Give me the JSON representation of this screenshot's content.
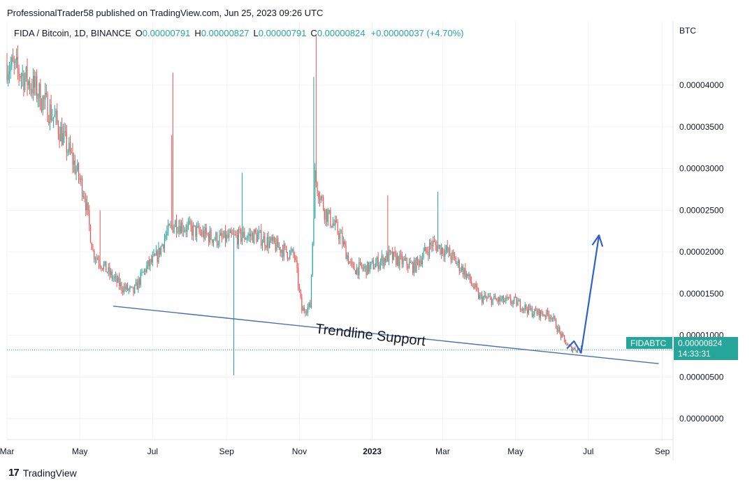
{
  "publisher_line": "ProfessionalTrader58 published on TradingView.com, Jun 25, 2023 09:26 UTC",
  "footer": {
    "logo": "17",
    "brand": "TradingView"
  },
  "chart_data": {
    "type": "candlestick",
    "symbol_line": {
      "symbol": "FIDA / Bitcoin, 1D, BINANCE",
      "o_label": "O",
      "o_value": "0.00000791",
      "h_label": "H",
      "h_value": "0.00000827",
      "l_label": "L",
      "l_value": "0.00000791",
      "c_label": "C",
      "c_value": "0.00000824",
      "change": "+0.00000037 (+4.70%)"
    },
    "currency": "BTC",
    "y_ticks": [
      "0.00004000",
      "0.00003500",
      "0.00003000",
      "0.00002500",
      "0.00002000",
      "0.00001500",
      "0.00001000",
      "0.00000500",
      "0.00000000"
    ],
    "y_tick_values": [
      4e-05,
      3.5e-05,
      3e-05,
      2.5e-05,
      2e-05,
      1.5e-05,
      1e-05,
      5e-06,
      0
    ],
    "ylim": [
      -2.5e-06,
      4.77e-05
    ],
    "x_ticks": [
      "Mar",
      "May",
      "Jul",
      "Sep",
      "Nov",
      "2023",
      "Mar",
      "May",
      "Jul",
      "Sep"
    ],
    "x_tick_dates": [
      "2022-03-01",
      "2022-05-01",
      "2022-07-01",
      "2022-09-01",
      "2022-11-01",
      "2023-01-01",
      "2023-03-01",
      "2023-05-01",
      "2023-07-01",
      "2023-09-01"
    ],
    "xlim": [
      "2022-03-01",
      "2023-09-10"
    ],
    "last_price": {
      "symbol": "FIDABTC",
      "price": "0.00000824",
      "countdown": "14:33:31",
      "value": 8.24e-06
    },
    "trendline": {
      "label": "Trendline Support",
      "start": [
        "2022-05-29",
        1.35e-05
      ],
      "end": [
        "2023-08-29",
        6.6e-06
      ]
    },
    "projection_arrow": [
      [
        "2023-06-13",
        8.4e-06
      ],
      [
        "2023-06-19",
        9.3e-06
      ],
      [
        "2023-06-25",
        7.9e-06
      ],
      [
        "2023-07-10",
        2.2e-05
      ]
    ],
    "anchors": [
      [
        "2022-03-01",
        4.25e-05
      ],
      [
        "2022-03-12",
        4.15e-05
      ],
      [
        "2022-03-25",
        3.95e-05
      ],
      [
        "2022-04-10",
        3.6e-05
      ],
      [
        "2022-04-25",
        3.1e-05
      ],
      [
        "2022-05-05",
        2.7e-05
      ],
      [
        "2022-05-12",
        2e-05
      ],
      [
        "2022-05-25",
        1.75e-05
      ],
      [
        "2022-06-05",
        1.58e-05
      ],
      [
        "2022-06-15",
        1.52e-05
      ],
      [
        "2022-06-25",
        1.8e-05
      ],
      [
        "2022-07-05",
        1.95e-05
      ],
      [
        "2022-07-12",
        2.2e-05
      ],
      [
        "2022-07-20",
        2.35e-05
      ],
      [
        "2022-08-05",
        2.25e-05
      ],
      [
        "2022-08-25",
        2.15e-05
      ],
      [
        "2022-09-10",
        2.18e-05
      ],
      [
        "2022-09-25",
        2.2e-05
      ],
      [
        "2022-10-15",
        2.05e-05
      ],
      [
        "2022-10-28",
        1.95e-05
      ],
      [
        "2022-11-03",
        1.3e-05
      ],
      [
        "2022-11-10",
        1.35e-05
      ],
      [
        "2022-11-14",
        2.9e-05
      ],
      [
        "2022-11-22",
        2.5e-05
      ],
      [
        "2022-12-05",
        2.2e-05
      ],
      [
        "2022-12-15",
        1.8e-05
      ],
      [
        "2022-12-28",
        1.8e-05
      ],
      [
        "2023-01-15",
        1.95e-05
      ],
      [
        "2023-02-05",
        1.82e-05
      ],
      [
        "2023-02-20",
        2.1e-05
      ],
      [
        "2023-03-05",
        2e-05
      ],
      [
        "2023-03-20",
        1.75e-05
      ],
      [
        "2023-04-01",
        1.45e-05
      ],
      [
        "2023-04-15",
        1.42e-05
      ],
      [
        "2023-05-01",
        1.4e-05
      ],
      [
        "2023-05-15",
        1.28e-05
      ],
      [
        "2023-05-31",
        1.24e-05
      ],
      [
        "2023-06-08",
        1e-05
      ],
      [
        "2023-06-15",
        8.5e-06
      ],
      [
        "2023-06-25",
        8.24e-06
      ]
    ],
    "spikes": [
      [
        "2022-07-18",
        4.15e-05,
        "up"
      ],
      [
        "2022-07-17",
        3.4e-05,
        "up"
      ],
      [
        "2022-09-07",
        5.2e-06,
        "down"
      ],
      [
        "2022-09-14",
        2.95e-05,
        "up"
      ],
      [
        "2022-11-15",
        4.6e-05,
        "up"
      ],
      [
        "2022-11-13",
        4.1e-05,
        "up"
      ],
      [
        "2023-02-25",
        2.72e-05,
        "up"
      ],
      [
        "2022-05-18",
        2.5e-05,
        "up"
      ],
      [
        "2023-01-14",
        2.68e-05,
        "up"
      ]
    ],
    "up_color": "#26a69a",
    "down_color": "#ef5350",
    "trendline_color": "#4a6fb5",
    "arrow_color": "#2f5fd0",
    "label_bg": "#26a69a"
  }
}
